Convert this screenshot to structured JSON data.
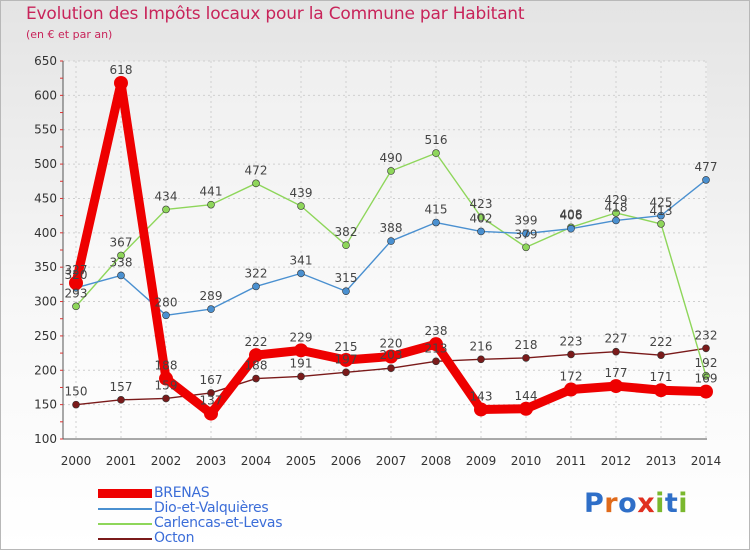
{
  "title": "Evolution des Impôts locaux pour la Commune par Habitant",
  "subtitle": "(en € et par an)",
  "logo": {
    "text": "Proxiti",
    "letter_colors": [
      "#2f6fc8",
      "#e06a1a",
      "#2f6fc8",
      "#e03020",
      "#7ab82e",
      "#2f6fc8",
      "#7ab82e"
    ]
  },
  "chart_data": {
    "type": "line",
    "x": [
      2000,
      2001,
      2002,
      2003,
      2004,
      2005,
      2006,
      2007,
      2008,
      2009,
      2010,
      2011,
      2012,
      2013,
      2014
    ],
    "ylim": [
      100,
      650
    ],
    "yticks": [
      100,
      150,
      200,
      250,
      300,
      350,
      400,
      450,
      500,
      550,
      600,
      650
    ],
    "grid": true,
    "legend_placement": "bottom-left",
    "series": [
      {
        "name": "Octon",
        "color": "#7a1a1a",
        "values": [
          150,
          157,
          159,
          167,
          188,
          191,
          197,
          203,
          213,
          216,
          218,
          223,
          227,
          222,
          232
        ],
        "labels": [
          "150",
          "157",
          "159",
          "167",
          "188",
          "191",
          "197",
          "203",
          "213",
          "216",
          "218",
          "223",
          "227",
          "222",
          "232"
        ]
      },
      {
        "name": "Carlencas-et-Levas",
        "color": "#8ed65a",
        "values": [
          293,
          367,
          434,
          441,
          472,
          439,
          382,
          490,
          516,
          423,
          379,
          408,
          429,
          413,
          192
        ],
        "labels": [
          "293",
          "367",
          "434",
          "441",
          "472",
          "439",
          "382",
          "490",
          "516",
          "423",
          "379",
          "408",
          "429",
          "413",
          "192"
        ]
      },
      {
        "name": "Dio-et-Valquières",
        "color": "#4a90d0",
        "values": [
          320,
          338,
          280,
          289,
          322,
          341,
          315,
          388,
          415,
          402,
          399,
          406,
          418,
          425,
          477
        ],
        "labels": [
          "320",
          "338",
          "280",
          "289",
          "322",
          "341",
          "315",
          "388",
          "415",
          "402",
          "399",
          "406",
          "418",
          "425",
          "477"
        ]
      },
      {
        "name": "BRENAS",
        "color": "#ee0000",
        "values": [
          327,
          618,
          188,
          137,
          222,
          229,
          215,
          220,
          238,
          143,
          144,
          172,
          177,
          171,
          169
        ],
        "labels": [
          "327",
          "618",
          "188",
          "137",
          "222",
          "229",
          "215",
          "220",
          "238",
          "143",
          "144",
          "172",
          "177",
          "171",
          "169"
        ]
      }
    ],
    "legend": [
      "BRENAS",
      "Dio-et-Valquières",
      "Carlencas-et-Levas",
      "Octon"
    ]
  }
}
